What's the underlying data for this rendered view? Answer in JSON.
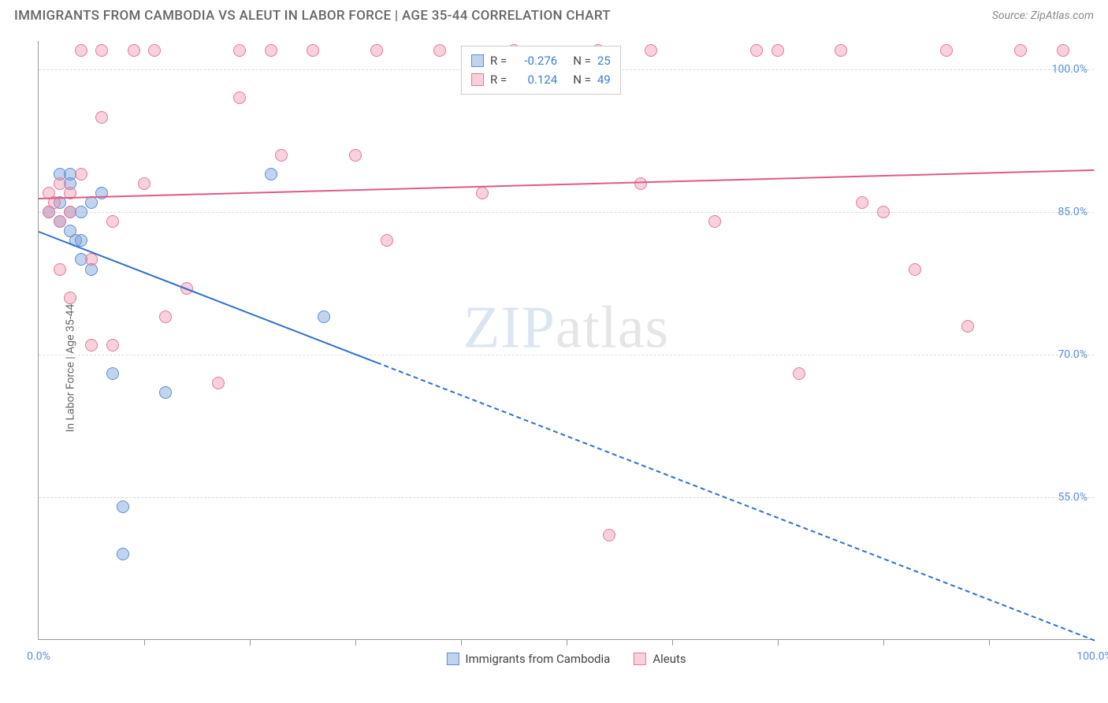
{
  "title": "IMMIGRANTS FROM CAMBODIA VS ALEUT IN LABOR FORCE | AGE 35-44 CORRELATION CHART",
  "source": "Source: ZipAtlas.com",
  "ylabel": "In Labor Force | Age 35-44",
  "watermark_a": "ZIP",
  "watermark_b": "atlas",
  "chart": {
    "type": "scatter",
    "xlim": [
      0,
      100
    ],
    "ylim": [
      40,
      103
    ],
    "yticks": [
      {
        "v": 55,
        "label": "55.0%"
      },
      {
        "v": 70,
        "label": "70.0%"
      },
      {
        "v": 85,
        "label": "85.0%"
      },
      {
        "v": 100,
        "label": "100.0%"
      }
    ],
    "ytick_color": "#5b8fd6",
    "xticks_minor": [
      10,
      20,
      30,
      40,
      50,
      60,
      70,
      80,
      90
    ],
    "xtick_labels": [
      {
        "v": 0,
        "label": "0.0%"
      },
      {
        "v": 100,
        "label": "100.0%"
      }
    ],
    "xtick_label_color": "#5b8fd6",
    "grid_color": "#dddddd",
    "axis_color": "#999999",
    "background": "#ffffff",
    "marker_radius": 8,
    "series": [
      {
        "name": "Immigrants from Cambodia",
        "fill": "rgba(120,160,215,0.45)",
        "stroke": "#5b8fd6",
        "trend_color": "#2f6fd0",
        "R": "-0.276",
        "N": "25",
        "trend": {
          "x1": 0,
          "y1": 83,
          "x2": 100,
          "y2": 40,
          "solid_until_x": 32
        },
        "points": [
          [
            1,
            85
          ],
          [
            2,
            84
          ],
          [
            2,
            86
          ],
          [
            3,
            85
          ],
          [
            3,
            83
          ],
          [
            3.5,
            82
          ],
          [
            2,
            89
          ],
          [
            3,
            89
          ],
          [
            3,
            88
          ],
          [
            4,
            85
          ],
          [
            4,
            82
          ],
          [
            4,
            80
          ],
          [
            5,
            79
          ],
          [
            5,
            86
          ],
          [
            6,
            87
          ],
          [
            7,
            68
          ],
          [
            8,
            54
          ],
          [
            8,
            49
          ],
          [
            12,
            66
          ],
          [
            22,
            89
          ],
          [
            27,
            74
          ]
        ]
      },
      {
        "name": "Aleuts",
        "fill": "rgba(235,140,165,0.40)",
        "stroke": "#e47a98",
        "trend_color": "#e05a86",
        "R": "0.124",
        "N": "49",
        "trend": {
          "x1": 0,
          "y1": 86.5,
          "x2": 100,
          "y2": 89.5,
          "solid_until_x": 100
        },
        "points": [
          [
            1,
            87
          ],
          [
            1,
            85
          ],
          [
            1.5,
            86
          ],
          [
            2,
            88
          ],
          [
            2,
            84
          ],
          [
            2,
            79
          ],
          [
            3,
            87
          ],
          [
            3,
            85
          ],
          [
            3,
            76
          ],
          [
            4,
            102
          ],
          [
            4,
            89
          ],
          [
            5,
            71
          ],
          [
            5,
            80
          ],
          [
            6,
            102
          ],
          [
            6,
            95
          ],
          [
            7,
            84
          ],
          [
            7,
            71
          ],
          [
            9,
            102
          ],
          [
            10,
            88
          ],
          [
            11,
            102
          ],
          [
            12,
            74
          ],
          [
            14,
            77
          ],
          [
            17,
            67
          ],
          [
            19,
            97
          ],
          [
            19,
            102
          ],
          [
            22,
            102
          ],
          [
            23,
            91
          ],
          [
            26,
            102
          ],
          [
            30,
            91
          ],
          [
            32,
            102
          ],
          [
            33,
            82
          ],
          [
            38,
            102
          ],
          [
            42,
            87
          ],
          [
            45,
            102
          ],
          [
            53,
            102
          ],
          [
            54,
            51
          ],
          [
            57,
            88
          ],
          [
            58,
            102
          ],
          [
            64,
            84
          ],
          [
            68,
            102
          ],
          [
            70,
            102
          ],
          [
            72,
            68
          ],
          [
            76,
            102
          ],
          [
            78,
            86
          ],
          [
            80,
            85
          ],
          [
            83,
            79
          ],
          [
            86,
            102
          ],
          [
            88,
            73
          ],
          [
            93,
            102
          ],
          [
            97,
            102
          ]
        ]
      }
    ],
    "legend_stats": {
      "label_R": "R =",
      "label_N": "N =",
      "value_color": "#3b7dd8"
    },
    "bottom_legend_labels": [
      "Immigrants from Cambodia",
      "Aleuts"
    ]
  }
}
